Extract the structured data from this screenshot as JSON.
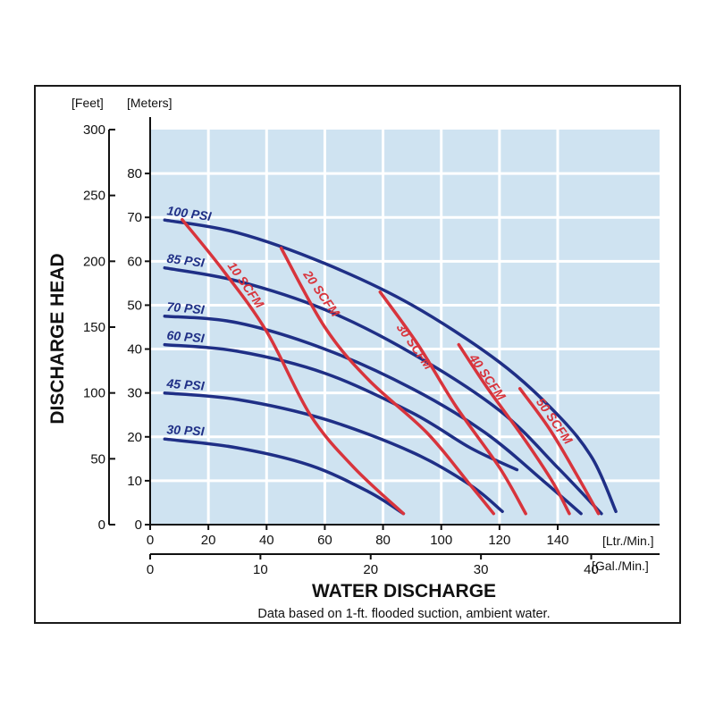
{
  "colors": {
    "plot_bg": "#cfe3f1",
    "grid": "#ffffff",
    "psi_curve": "#1f2f86",
    "scfm_curve": "#d8343c",
    "text": "#111111"
  },
  "chart_data": {
    "type": "line",
    "title": "",
    "ylabel": "DISCHARGE HEAD",
    "xlabel": "WATER DISCHARGE",
    "footnote": "Data based on 1-ft. flooded suction, ambient water.",
    "axes": {
      "feet": {
        "unit_label": "[Feet]",
        "range": [
          0,
          300
        ],
        "ticks": [
          "0",
          "50",
          "100",
          "150",
          "200",
          "250",
          "300"
        ]
      },
      "meters": {
        "unit_label": "[Meters]",
        "range": [
          0,
          90
        ],
        "ticks": [
          "0",
          "10",
          "20",
          "30",
          "40",
          "50",
          "60",
          "70",
          "80"
        ]
      },
      "lpm": {
        "unit_label": "[Ltr./Min.]",
        "range": [
          0,
          175
        ],
        "ticks": [
          "0",
          "20",
          "40",
          "60",
          "80",
          "100",
          "120",
          "140"
        ]
      },
      "gpm": {
        "unit_label": "[Gal./Min.]",
        "range": [
          0,
          46.2
        ],
        "ticks": [
          "0",
          "10",
          "20",
          "30",
          "40"
        ]
      }
    },
    "grid": true,
    "x_unit": "Ltr./Min.",
    "y_unit": "Meters",
    "psi_series": [
      {
        "name": "100 PSI",
        "points": [
          [
            5,
            69.4
          ],
          [
            30,
            66.5
          ],
          [
            60,
            59.5
          ],
          [
            90,
            50
          ],
          [
            120,
            37
          ],
          [
            140,
            25
          ],
          [
            152,
            15
          ],
          [
            160,
            3
          ]
        ]
      },
      {
        "name": "85 PSI",
        "points": [
          [
            5,
            58.5
          ],
          [
            30,
            55.5
          ],
          [
            60,
            49
          ],
          [
            90,
            39
          ],
          [
            120,
            26
          ],
          [
            140,
            13
          ],
          [
            155,
            2.5
          ]
        ]
      },
      {
        "name": "70 PSI",
        "points": [
          [
            5,
            47.5
          ],
          [
            30,
            46
          ],
          [
            60,
            40
          ],
          [
            90,
            31
          ],
          [
            115,
            21
          ],
          [
            135,
            10
          ],
          [
            148,
            2.5
          ]
        ]
      },
      {
        "name": "60 PSI",
        "points": [
          [
            5,
            41
          ],
          [
            30,
            39.5
          ],
          [
            60,
            34.5
          ],
          [
            90,
            25.5
          ],
          [
            110,
            17.5
          ],
          [
            126,
            12.5
          ]
        ]
      },
      {
        "name": "45 PSI",
        "points": [
          [
            5,
            30
          ],
          [
            30,
            28.5
          ],
          [
            60,
            24
          ],
          [
            90,
            16.5
          ],
          [
            110,
            9
          ],
          [
            121,
            3
          ]
        ]
      },
      {
        "name": "30 PSI",
        "points": [
          [
            5,
            19.5
          ],
          [
            30,
            17.5
          ],
          [
            55,
            13.5
          ],
          [
            75,
            7.5
          ],
          [
            87,
            2.5
          ]
        ]
      }
    ],
    "scfm_series": [
      {
        "name": "10 SCFM",
        "points": [
          [
            11,
            69.5
          ],
          [
            25,
            58
          ],
          [
            40,
            44
          ],
          [
            55,
            25
          ],
          [
            70,
            13
          ],
          [
            87,
            2.5
          ]
        ]
      },
      {
        "name": "20 SCFM",
        "points": [
          [
            45,
            63
          ],
          [
            60,
            45
          ],
          [
            75,
            33
          ],
          [
            95,
            21
          ],
          [
            110,
            9
          ],
          [
            118,
            2.5
          ]
        ]
      },
      {
        "name": "30 SCFM",
        "points": [
          [
            79,
            53
          ],
          [
            92,
            41
          ],
          [
            105,
            27
          ],
          [
            120,
            13
          ],
          [
            129,
            2.5
          ]
        ]
      },
      {
        "name": "40 SCFM",
        "points": [
          [
            106,
            41
          ],
          [
            116,
            31
          ],
          [
            128,
            20
          ],
          [
            138,
            10
          ],
          [
            144,
            2.5
          ]
        ]
      },
      {
        "name": "50 SCFM",
        "points": [
          [
            127,
            31
          ],
          [
            137,
            22
          ],
          [
            146,
            12
          ],
          [
            154,
            2.5
          ]
        ]
      }
    ]
  }
}
